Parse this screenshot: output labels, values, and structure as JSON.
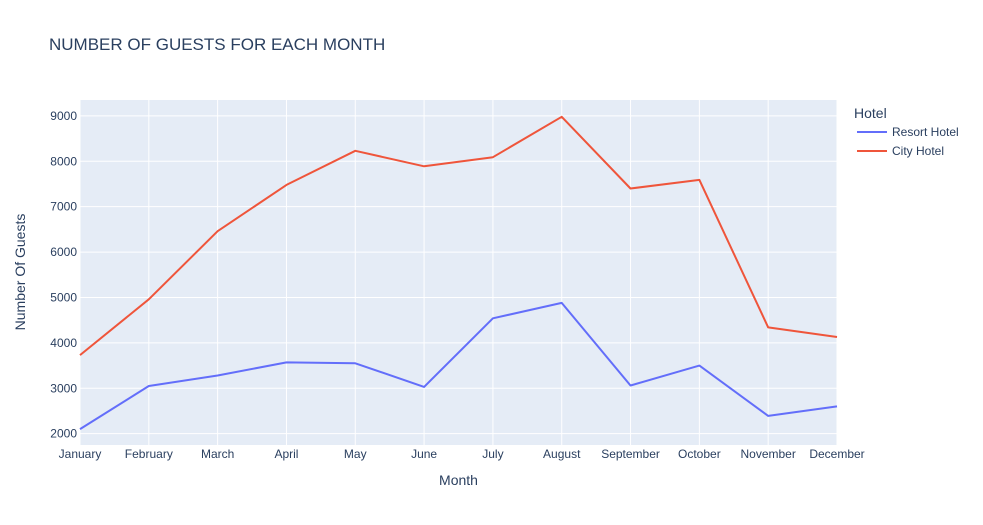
{
  "chart_data": {
    "type": "line",
    "title": "NUMBER OF GUESTS FOR EACH MONTH",
    "xlabel": "Month",
    "ylabel": "Number Of Guests",
    "categories": [
      "January",
      "February",
      "March",
      "April",
      "May",
      "June",
      "July",
      "August",
      "September",
      "October",
      "November",
      "December"
    ],
    "ylim": [
      1750,
      9350
    ],
    "yticks": [
      2000,
      3000,
      4000,
      5000,
      6000,
      7000,
      8000,
      9000
    ],
    "grid": true,
    "legend_title": "Hotel",
    "legend_position": "right",
    "series": [
      {
        "name": "Resort Hotel",
        "color": "#636efa",
        "values": [
          2100,
          3050,
          3280,
          3570,
          3550,
          3030,
          4540,
          4880,
          3060,
          3500,
          2390,
          2600
        ]
      },
      {
        "name": "City Hotel",
        "color": "#ef553b",
        "values": [
          3730,
          4960,
          6460,
          7480,
          8230,
          7890,
          8090,
          8980,
          7400,
          7590,
          4340,
          4130
        ]
      }
    ]
  }
}
